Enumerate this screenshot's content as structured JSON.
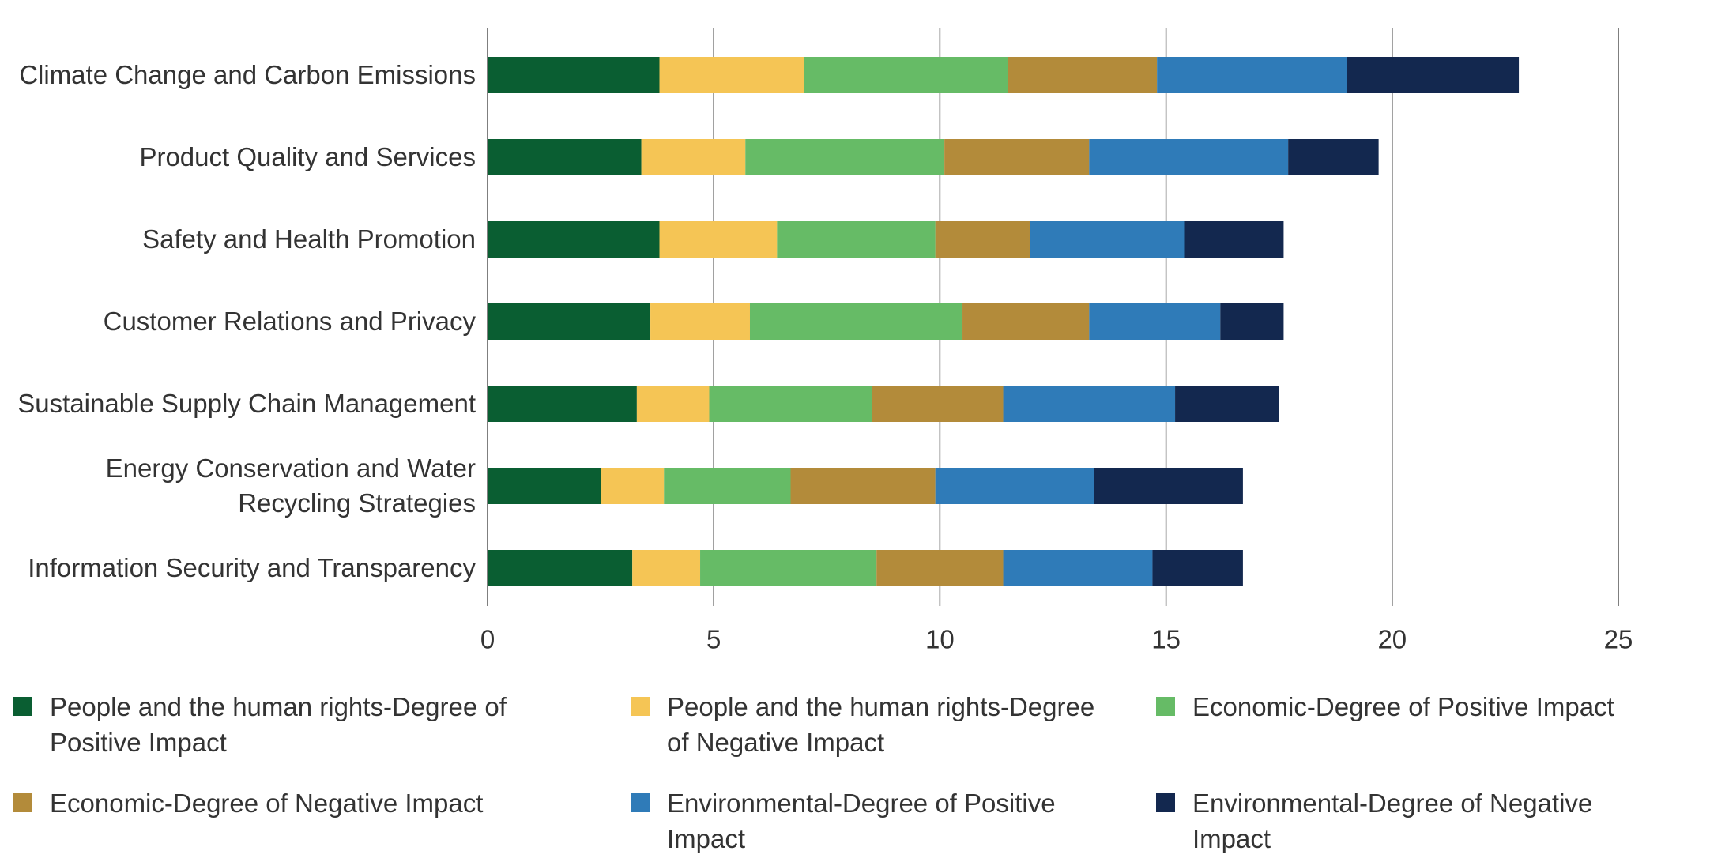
{
  "chart_data": {
    "type": "stacked-bar-horizontal",
    "categories": [
      "Climate Change and Carbon Emissions",
      "Product Quality and Services",
      "Safety and Health Promotion",
      "Customer Relations and Privacy",
      "Sustainable Supply Chain Management",
      "Energy Conservation and Water Recycling Strategies",
      "Information Security and Transparency"
    ],
    "series": [
      {
        "name": "People and the human rights-Degree of Positive Impact",
        "color": "#0a5e32",
        "values": [
          3.8,
          3.4,
          3.8,
          3.6,
          3.3,
          2.5,
          3.2
        ]
      },
      {
        "name": "People and the human rights-Degree of Negative Impact",
        "color": "#f5c555",
        "values": [
          3.2,
          2.3,
          2.6,
          2.2,
          1.6,
          1.4,
          1.5
        ]
      },
      {
        "name": "Economic-Degree of Positive Impact",
        "color": "#66bb66",
        "values": [
          4.5,
          4.4,
          3.5,
          4.7,
          3.6,
          2.8,
          3.9
        ]
      },
      {
        "name": "Economic-Degree of Negative Impact",
        "color": "#b38b3a",
        "values": [
          3.3,
          3.2,
          2.1,
          2.8,
          2.9,
          3.2,
          2.8
        ]
      },
      {
        "name": "Environmental-Degree of Positive Impact",
        "color": "#2f7bb8",
        "values": [
          4.2,
          4.4,
          3.4,
          2.9,
          3.8,
          3.5,
          3.3
        ]
      },
      {
        "name": "Environmental-Degree of Negative Impact",
        "color": "#13284f",
        "values": [
          3.8,
          2.0,
          2.2,
          1.4,
          2.3,
          3.3,
          2.0
        ]
      }
    ],
    "xlim": [
      0,
      25
    ],
    "xticks": [
      0,
      5,
      10,
      15,
      20,
      25
    ],
    "grid": true,
    "legend": "bottom"
  }
}
